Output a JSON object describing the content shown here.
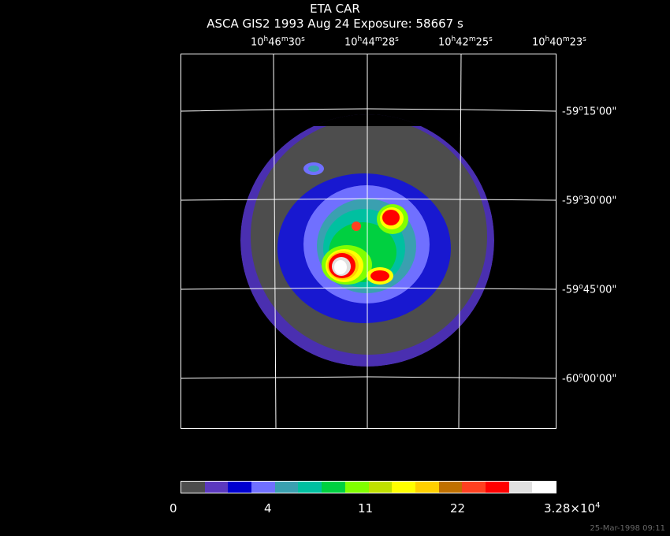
{
  "header": {
    "object": "ETA CAR",
    "line2": "ASCA GIS2   1993 Aug 24    Exposure: 58667 s"
  },
  "ra_labels": [
    {
      "h": "10",
      "m": "46",
      "s": "30"
    },
    {
      "h": "10",
      "m": "44",
      "s": "28"
    },
    {
      "h": "10",
      "m": "42",
      "s": "25"
    },
    {
      "h": "10",
      "m": "40",
      "s": "23"
    }
  ],
  "dec_labels": [
    {
      "d": "-59",
      "m": "15",
      "s": "00"
    },
    {
      "d": "-59",
      "m": "30",
      "s": "00"
    },
    {
      "d": "-59",
      "m": "45",
      "s": "00"
    },
    {
      "d": "-60",
      "m": "00",
      "s": "00"
    }
  ],
  "colorbar": {
    "colors": [
      "#4d4d4d",
      "#5b38bf",
      "#0000d0",
      "#7070ff",
      "#3aa0b0",
      "#00c0a0",
      "#00d040",
      "#80ff00",
      "#c0e000",
      "#ffff00",
      "#ffd000",
      "#c07000",
      "#ff4020",
      "#ff0000",
      "#e0e0e0",
      "#ffffff"
    ],
    "labels": [
      "0",
      "4",
      "11",
      "22"
    ],
    "max_label_base": "3.28×10",
    "max_label_exp": "4"
  },
  "timestamp": "25-Mar-1998 09:11"
}
